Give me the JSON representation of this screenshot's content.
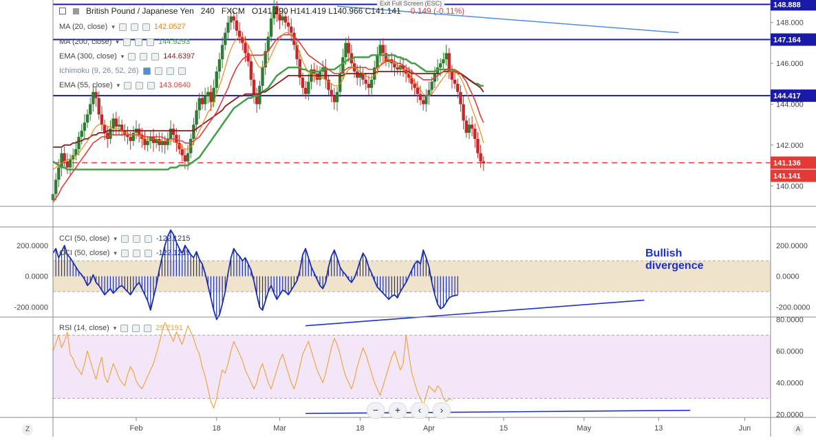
{
  "header": {
    "title": "British Pound / Japanese Yen",
    "interval": "240",
    "source": "FXCM",
    "ohlc": "O141.290 H141.419 L140.966 C141.141",
    "change": "-0.149 (-0.11%)",
    "exit_fullscreen": "Exit Full Screen (ESC)"
  },
  "legend": {
    "ma20": {
      "name": "MA (20, close)",
      "value": "142.0527",
      "color": "#f57c00"
    },
    "ma200": {
      "name": "MA (200, close)",
      "value": "144.9293",
      "color": "#43a047"
    },
    "ema300": {
      "name": "EMA (300, close)",
      "value": "144.6397",
      "color": "#8b1a1a"
    },
    "ichimoku": {
      "name": "Ichimoku (9, 26, 52, 26)",
      "value": "",
      "color": "#607d8b"
    },
    "ema55": {
      "name": "EMA (55, close)",
      "value": "143.0640",
      "color": "#e53935"
    },
    "cci": {
      "name": "CCI (50, close)",
      "value": "-122.1215",
      "color": "#1a2fb0"
    },
    "cci2": {
      "name": "CCI (50, close)",
      "value": "-122.1215",
      "color": "#1a2fb0"
    },
    "rsi": {
      "name": "RSI (14, close)",
      "value": "29.2191",
      "color": "#f0a030"
    }
  },
  "annotation": {
    "line1": "Bullish",
    "line2": "divergence"
  },
  "controls": {
    "zoom_out": "−",
    "zoom_in": "+",
    "back": "‹",
    "forward": "›",
    "corner_left": "Z",
    "corner_right": "A"
  },
  "chart_data": [
    {
      "type": "line",
      "panel": "price",
      "title": "British Pound / Japanese Yen",
      "x_ticks": [
        {
          "label": "Feb",
          "i": 29
        },
        {
          "label": "18",
          "i": 57
        },
        {
          "label": "Mar",
          "i": 79
        },
        {
          "label": "18",
          "i": 107
        },
        {
          "label": "Apr",
          "i": 131
        },
        {
          "label": "15",
          "i": 157
        },
        {
          "label": "May",
          "i": 185
        },
        {
          "label": "13",
          "i": 211
        },
        {
          "label": "Jun",
          "i": 241
        }
      ],
      "ylim": [
        139.0,
        148.9
      ],
      "y_ticks": [
        140.0,
        142.0,
        144.0,
        146.0,
        148.0
      ],
      "horizontal_levels": [
        {
          "value": 148.888,
          "label": "148.888",
          "color": "#1a1aa8"
        },
        {
          "value": 147.164,
          "label": "147.164",
          "color": "#1a1aa8"
        },
        {
          "value": 144.417,
          "label": "144.417",
          "color": "#1a1aa8"
        }
      ],
      "dashed_level": {
        "value": 141.136,
        "label": "141.136",
        "color": "#e53935"
      },
      "last_price": {
        "value": 141.141,
        "label": "141.141",
        "color": "#e53935"
      },
      "trendline": {
        "from": [
          99,
          148.8
        ],
        "to": [
          218,
          147.5
        ],
        "color": "#4a8fe0"
      },
      "close": [
        139.6,
        140.3,
        140.9,
        141.6,
        141.2,
        140.9,
        141.3,
        141.5,
        141.8,
        142.4,
        142.7,
        143.1,
        143.5,
        144.0,
        144.6,
        144.3,
        143.5,
        143.0,
        142.6,
        142.3,
        142.8,
        143.3,
        142.9,
        143.0,
        142.7,
        142.5,
        142.4,
        142.2,
        142.6,
        142.8,
        142.5,
        142.3,
        142.0,
        142.2,
        142.4,
        142.1,
        142.3,
        142.0,
        142.2,
        142.0,
        142.3,
        142.8,
        142.5,
        142.1,
        141.8,
        141.5,
        141.2,
        141.6,
        142.3,
        143.0,
        143.7,
        144.3,
        144.0,
        144.4,
        144.6,
        144.1,
        144.8,
        145.6,
        146.2,
        146.9,
        147.5,
        148.0,
        148.3,
        148.1,
        147.6,
        147.3,
        147.0,
        146.5,
        146.1,
        145.2,
        144.4,
        144.0,
        144.9,
        145.8,
        146.6,
        147.3,
        148.2,
        148.8,
        148.4,
        148.1,
        148.3,
        148.0,
        147.8,
        147.5,
        146.9,
        146.2,
        145.3,
        144.8,
        144.5,
        145.1,
        145.7,
        145.5,
        145.2,
        145.6,
        145.8,
        145.2,
        144.7,
        144.4,
        144.1,
        144.6,
        145.5,
        146.3,
        147.0,
        146.5,
        146.0,
        145.6,
        145.3,
        145.5,
        145.2,
        145.0,
        144.8,
        145.2,
        145.8,
        146.4,
        146.9,
        146.5,
        146.1,
        146.2,
        146.0,
        145.8,
        145.7,
        145.9,
        145.7,
        145.5,
        145.3,
        145.0,
        144.8,
        144.5,
        144.2,
        144.0,
        144.4,
        144.7,
        145.1,
        145.5,
        145.8,
        146.0,
        146.2,
        146.5,
        145.6,
        145.2,
        145.0,
        144.6,
        144.0,
        143.2,
        142.6,
        143.0,
        142.8,
        142.3,
        141.6,
        141.2,
        141.1
      ],
      "ma20": [
        140.8,
        140.9,
        141.0,
        141.1,
        141.2,
        141.3,
        141.3,
        141.4,
        141.5,
        141.6,
        141.8,
        142.0,
        142.2,
        142.4,
        142.7,
        142.9,
        143.0,
        143.0,
        143.0,
        142.9,
        142.9,
        142.8,
        142.8,
        142.8,
        142.7,
        142.6,
        142.6,
        142.5,
        142.5,
        142.5,
        142.4,
        142.4,
        142.3,
        142.3,
        142.3,
        142.3,
        142.3,
        142.2,
        142.2,
        142.2,
        142.2,
        142.2,
        142.2,
        142.1,
        142.0,
        141.9,
        141.8,
        141.8,
        141.9,
        142.1,
        142.4,
        142.7,
        143.0,
        143.3,
        143.6,
        143.8,
        144.1,
        144.5,
        144.9,
        145.3,
        145.8,
        146.3,
        146.7,
        147.0,
        147.2,
        147.3,
        147.3,
        147.1,
        146.9,
        146.6,
        146.3,
        146.0,
        145.8,
        145.8,
        145.9,
        146.1,
        146.4,
        146.7,
        147.0,
        147.2,
        147.4,
        147.5,
        147.5,
        147.4,
        147.2,
        146.9,
        146.5,
        146.1,
        145.8,
        145.6,
        145.5,
        145.4,
        145.3,
        145.3,
        145.3,
        145.2,
        145.1,
        145.0,
        144.9,
        144.9,
        145.0,
        145.2,
        145.5,
        145.7,
        145.8,
        145.8,
        145.7,
        145.6,
        145.5,
        145.4,
        145.3,
        145.3,
        145.4,
        145.6,
        145.9,
        146.1,
        146.2,
        146.2,
        146.1,
        146.0,
        145.9,
        145.8,
        145.7,
        145.6,
        145.5,
        145.3,
        145.1,
        144.9,
        144.7,
        144.5,
        144.4,
        144.4,
        144.5,
        144.7,
        144.9,
        145.1,
        145.3,
        145.5,
        145.6,
        145.6,
        145.6,
        145.5,
        145.3,
        145.0,
        144.6,
        144.2,
        143.8,
        143.4,
        143.0,
        142.6,
        142.1
      ],
      "ema55": [
        139.2,
        139.4,
        139.6,
        139.9,
        140.1,
        140.3,
        140.5,
        140.7,
        140.9,
        141.1,
        141.3,
        141.5,
        141.7,
        141.9,
        142.1,
        142.2,
        142.3,
        142.4,
        142.4,
        142.4,
        142.5,
        142.5,
        142.5,
        142.5,
        142.5,
        142.5,
        142.5,
        142.5,
        142.5,
        142.5,
        142.5,
        142.5,
        142.4,
        142.4,
        142.4,
        142.4,
        142.4,
        142.4,
        142.4,
        142.3,
        142.3,
        142.3,
        142.3,
        142.3,
        142.2,
        142.2,
        142.1,
        142.1,
        142.1,
        142.2,
        142.3,
        142.4,
        142.6,
        142.8,
        143.0,
        143.2,
        143.4,
        143.6,
        143.9,
        144.2,
        144.5,
        144.8,
        145.2,
        145.5,
        145.8,
        146.0,
        146.2,
        146.3,
        146.4,
        146.4,
        146.4,
        146.4,
        146.4,
        146.4,
        146.5,
        146.6,
        146.8,
        147.0,
        147.2,
        147.3,
        147.4,
        147.4,
        147.4,
        147.4,
        147.3,
        147.2,
        147.0,
        146.8,
        146.6,
        146.4,
        146.3,
        146.2,
        146.1,
        146.0,
        145.9,
        145.8,
        145.7,
        145.6,
        145.5,
        145.5,
        145.5,
        145.6,
        145.7,
        145.8,
        145.8,
        145.8,
        145.8,
        145.8,
        145.8,
        145.8,
        145.7,
        145.7,
        145.7,
        145.8,
        145.9,
        146.0,
        146.1,
        146.1,
        146.1,
        146.1,
        146.0,
        146.0,
        145.9,
        145.8,
        145.7,
        145.6,
        145.5,
        145.4,
        145.3,
        145.2,
        145.2,
        145.2,
        145.2,
        145.3,
        145.4,
        145.5,
        145.6,
        145.7,
        145.7,
        145.7,
        145.7,
        145.6,
        145.5,
        145.3,
        145.1,
        144.8,
        144.5,
        144.2,
        143.8,
        143.4,
        143.1
      ],
      "ema300": [
        141.9,
        141.9,
        141.9,
        141.9,
        142.0,
        142.0,
        142.0,
        142.1,
        142.1,
        142.2,
        142.2,
        142.3,
        142.3,
        142.4,
        142.5,
        142.5,
        142.6,
        142.6,
        142.6,
        142.7,
        142.7,
        142.7,
        142.7,
        142.7,
        142.7,
        142.7,
        142.7,
        142.7,
        142.7,
        142.7,
        142.7,
        142.7,
        142.7,
        142.7,
        142.7,
        142.7,
        142.7,
        142.7,
        142.7,
        142.7,
        142.7,
        142.7,
        142.7,
        142.7,
        142.7,
        142.7,
        142.7,
        142.7,
        142.7,
        142.7,
        142.8,
        142.9,
        143.0,
        143.1,
        143.2,
        143.3,
        143.4,
        143.5,
        143.6,
        143.7,
        143.9,
        144.0,
        144.1,
        144.2,
        144.3,
        144.4,
        144.4,
        144.5,
        144.5,
        144.5,
        144.5,
        144.5,
        144.5,
        144.6,
        144.6,
        144.7,
        144.8,
        144.9,
        145.0,
        145.1,
        145.2,
        145.3,
        145.4,
        145.4,
        145.4,
        145.4,
        145.4,
        145.4,
        145.4,
        145.4,
        145.4,
        145.4,
        145.4,
        145.4,
        145.4,
        145.4,
        145.4,
        145.4,
        145.4,
        145.4,
        145.4,
        145.4,
        145.5,
        145.5,
        145.5,
        145.5,
        145.5,
        145.5,
        145.5,
        145.5,
        145.5,
        145.5,
        145.5,
        145.6,
        145.6,
        145.6,
        145.6,
        145.6,
        145.6,
        145.6,
        145.6,
        145.6,
        145.6,
        145.6,
        145.6,
        145.5,
        145.5,
        145.5,
        145.5,
        145.5,
        145.5,
        145.5,
        145.5,
        145.5,
        145.5,
        145.5,
        145.6,
        145.6,
        145.6,
        145.6,
        145.6,
        145.5,
        145.5,
        145.4,
        145.3,
        145.2,
        145.1,
        145.0,
        144.9,
        144.8,
        144.6
      ],
      "ma200": [
        141.2,
        141.1,
        141.0,
        140.9,
        140.9,
        140.8,
        140.8,
        140.8,
        140.8,
        140.8,
        140.8,
        140.8,
        140.8,
        140.8,
        140.8,
        140.8,
        140.8,
        140.8,
        140.8,
        140.8,
        140.8,
        140.8,
        140.8,
        140.8,
        140.8,
        140.8,
        140.8,
        140.8,
        140.8,
        140.8,
        140.8,
        140.8,
        140.8,
        140.8,
        140.8,
        140.8,
        140.8,
        140.8,
        140.8,
        140.8,
        140.8,
        140.9,
        140.9,
        140.9,
        141.0,
        141.0,
        141.0,
        141.0,
        141.1,
        141.2,
        141.3,
        141.4,
        141.6,
        141.8,
        142.0,
        142.2,
        142.4,
        142.6,
        142.8,
        143.0,
        143.2,
        143.4,
        143.6,
        143.8,
        143.9,
        144.0,
        144.1,
        144.2,
        144.3,
        144.3,
        144.4,
        144.4,
        144.5,
        144.6,
        144.7,
        144.8,
        145.0,
        145.2,
        145.4,
        145.5,
        145.6,
        145.7,
        145.8,
        145.8,
        145.8,
        145.8,
        145.8,
        145.7,
        145.7,
        145.6,
        145.6,
        145.6,
        145.6,
        145.6,
        145.7,
        145.7,
        145.7,
        145.7,
        145.7,
        145.8,
        145.9,
        146.0,
        146.1,
        146.2,
        146.2,
        146.3,
        146.3,
        146.3,
        146.3,
        146.3,
        146.3,
        146.4,
        146.4,
        146.4,
        146.4,
        146.4,
        146.4,
        146.4,
        146.4,
        146.4,
        146.3,
        146.3,
        146.2,
        146.2,
        146.1,
        146.0,
        146.0,
        145.9,
        145.8,
        145.7,
        145.6,
        145.6,
        145.6,
        145.6,
        145.7,
        145.7,
        145.7,
        145.7,
        145.7,
        145.7,
        145.6,
        145.6,
        145.5,
        145.4,
        145.3,
        145.2,
        145.1,
        145.0,
        145.0,
        144.9,
        144.9
      ]
    },
    {
      "type": "area",
      "panel": "cci",
      "title": "CCI (50, close)",
      "ylim": [
        -260,
        320
      ],
      "y_ticks": [
        200.0,
        0.0,
        -200.0
      ],
      "y_tick_labels": [
        "200.0000",
        "0.0000",
        "-200.0000"
      ],
      "band": [
        -100,
        100
      ],
      "divergence_line": {
        "from": [
          88,
          -330
        ],
        "to": [
          206,
          -155
        ],
        "color": "#1a2fd6"
      },
      "values": [
        150,
        180,
        120,
        160,
        200,
        140,
        120,
        90,
        60,
        30,
        10,
        -20,
        -60,
        -40,
        10,
        -40,
        -60,
        -90,
        -120,
        -100,
        -80,
        -110,
        -90,
        -70,
        -60,
        -80,
        -100,
        -120,
        -90,
        -60,
        -40,
        -80,
        -120,
        -160,
        -220,
        -140,
        -60,
        40,
        120,
        200,
        260,
        300,
        270,
        220,
        180,
        150,
        200,
        170,
        140,
        120,
        160,
        110,
        80,
        20,
        -60,
        -140,
        -220,
        -280,
        -250,
        -180,
        -100,
        20,
        120,
        180,
        150,
        130,
        100,
        120,
        80,
        40,
        -30,
        -120,
        -200,
        -220,
        -160,
        -100,
        -60,
        -110,
        -150,
        -120,
        -90,
        -100,
        -120,
        -90,
        -60,
        -30,
        40,
        140,
        180,
        120,
        60,
        20,
        -20,
        -60,
        -80,
        -40,
        60,
        130,
        170,
        120,
        60,
        30,
        10,
        -20,
        -40,
        -10,
        40,
        100,
        150,
        120,
        60,
        20,
        -30,
        -70,
        -90,
        -110,
        -130,
        -150,
        -130,
        -120,
        -140,
        -100,
        -70,
        -40,
        0,
        40,
        80,
        100,
        80,
        170,
        120,
        60,
        -40,
        -120,
        -180,
        -210,
        -200,
        -170,
        -140,
        -130,
        -125,
        -122
      ],
      "last_value": "-122.1215"
    },
    {
      "type": "line",
      "panel": "rsi",
      "title": "RSI (14, close)",
      "ylim": [
        18,
        81
      ],
      "y_ticks": [
        80.0,
        60.0,
        40.0,
        20.0
      ],
      "y_tick_labels": [
        "80.0000",
        "60.0000",
        "40.0000",
        "20.0000"
      ],
      "band": [
        30,
        70
      ],
      "divergence_line": {
        "from": [
          88,
          20.5
        ],
        "to": [
          222,
          22.5
        ],
        "color": "#1a2fd6"
      },
      "values": [
        60,
        65,
        70,
        62,
        66,
        72,
        58,
        55,
        50,
        48,
        45,
        52,
        60,
        54,
        48,
        42,
        50,
        56,
        44,
        40,
        46,
        52,
        48,
        43,
        40,
        38,
        45,
        50,
        47,
        41,
        38,
        36,
        40,
        44,
        48,
        52,
        58,
        65,
        72,
        78,
        74,
        70,
        66,
        72,
        68,
        64,
        70,
        76,
        72,
        68,
        62,
        58,
        50,
        44,
        36,
        28,
        24,
        30,
        40,
        48,
        46,
        52,
        60,
        66,
        62,
        58,
        54,
        48,
        44,
        40,
        36,
        40,
        48,
        52,
        46,
        40,
        36,
        42,
        48,
        54,
        58,
        52,
        46,
        40,
        36,
        42,
        50,
        58,
        62,
        66,
        60,
        54,
        48,
        44,
        40,
        46,
        54,
        62,
        68,
        64,
        58,
        50,
        44,
        40,
        36,
        42,
        50,
        56,
        62,
        58,
        52,
        46,
        40,
        36,
        32,
        38,
        44,
        50,
        56,
        60,
        54,
        48,
        52,
        70,
        58,
        46,
        40,
        34,
        30,
        26,
        32,
        38,
        36,
        34,
        38,
        36,
        30,
        28,
        30,
        29
      ],
      "last_value": "29.2191"
    }
  ]
}
